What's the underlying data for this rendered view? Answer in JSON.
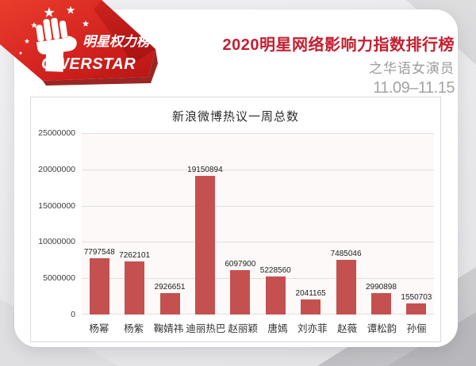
{
  "colors": {
    "accent_red": "#c41f30",
    "bar_red": "#c4514f",
    "subtitle_gray": "#9c9c9c",
    "date_gray": "#a3a3a3"
  },
  "logo": {
    "brand_cn": "明星权力榜",
    "brand_en": "OWERSTAR",
    "brand_full": "POWERSTAR"
  },
  "header": {
    "title": "2020明星网络影响力指数排行榜",
    "subtitle": "之华语女演员",
    "date_range": "11.09–11.15"
  },
  "chart_data": {
    "type": "bar",
    "title": "新浪微博热议一周总数",
    "categories": [
      "杨幂",
      "杨紫",
      "鞠婧祎",
      "迪丽热巴",
      "赵丽颖",
      "唐嫣",
      "刘亦菲",
      "赵薇",
      "谭松韵",
      "孙俪"
    ],
    "values": [
      7797548,
      7262101,
      2926651,
      19150894,
      6097900,
      5228560,
      2041165,
      7485046,
      2990898,
      1550703
    ],
    "xlabel": "",
    "ylabel": "",
    "ylim": [
      0,
      25000000
    ],
    "yticks": [
      0,
      5000000,
      10000000,
      15000000,
      20000000,
      25000000
    ],
    "grid": true,
    "legend": false,
    "value_labels": true,
    "bar_color": "#c4514f"
  }
}
